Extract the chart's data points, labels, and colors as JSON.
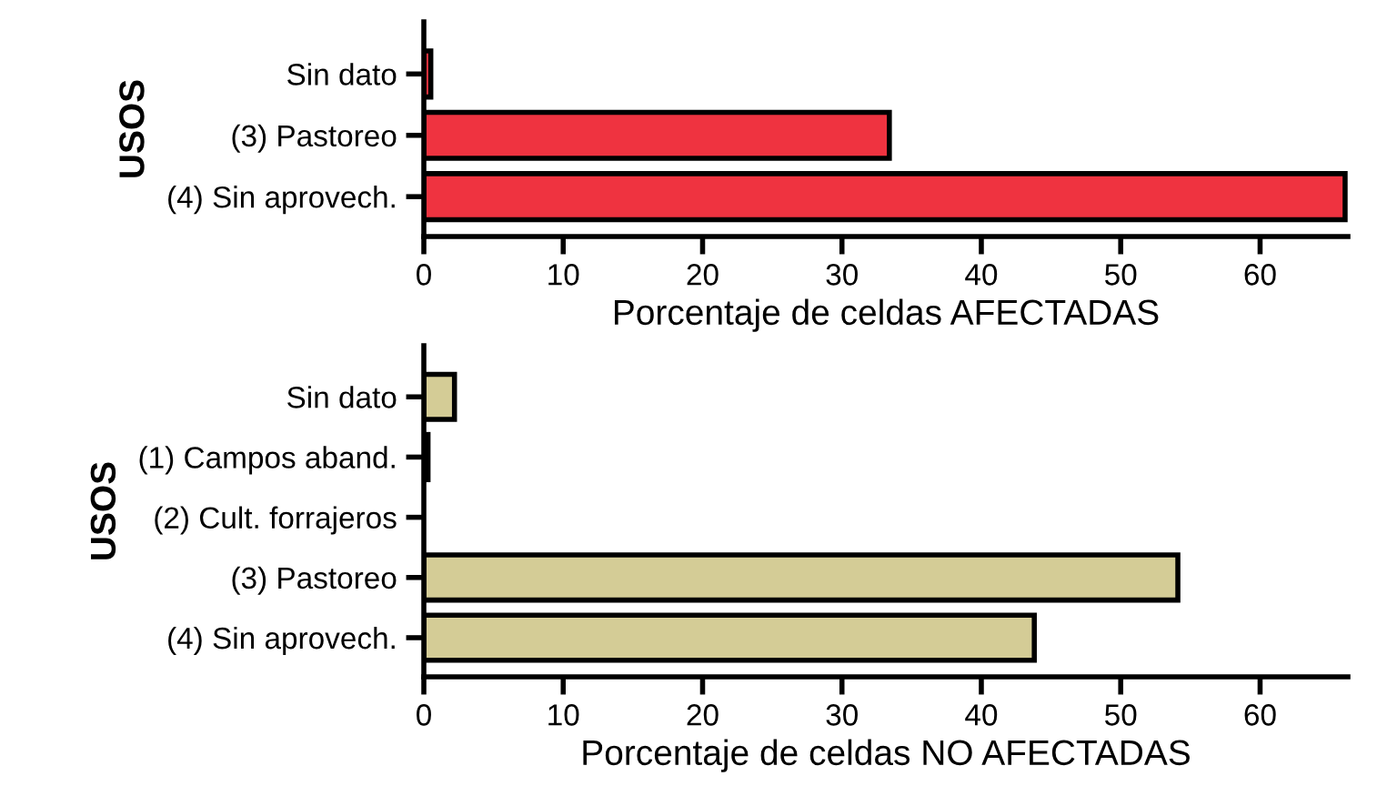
{
  "chart_data": [
    {
      "type": "bar",
      "orientation": "horizontal",
      "ylabel": "USOS",
      "xlabel": "Porcentaje de celdas AFECTADAS",
      "categories": [
        "Sin dato",
        "(3) Pastoreo",
        "(4) Sin aprovech."
      ],
      "series": [
        {
          "color": "#ef3340",
          "values": [
            0.5,
            33.4,
            66.1
          ]
        }
      ],
      "xlim": [
        0,
        66.3
      ],
      "xticks": [
        0,
        10,
        20,
        30,
        40,
        50,
        60
      ],
      "grid": false,
      "legend": false
    },
    {
      "type": "bar",
      "orientation": "horizontal",
      "ylabel": "USOS",
      "xlabel": "Porcentaje de celdas NO AFECTADAS",
      "categories": [
        "Sin dato",
        "(1) Campos aband.",
        "(2) Cult. forrajeros",
        "(3) Pastoreo",
        "(4) Sin aprovech."
      ],
      "series": [
        {
          "color": "#d4cc96",
          "values": [
            2.2,
            0.3,
            null,
            54.1,
            43.8
          ]
        }
      ],
      "xlim": [
        0,
        66.3
      ],
      "xticks": [
        0,
        10,
        20,
        30,
        40,
        50,
        60
      ],
      "grid": false,
      "legend": false
    }
  ]
}
